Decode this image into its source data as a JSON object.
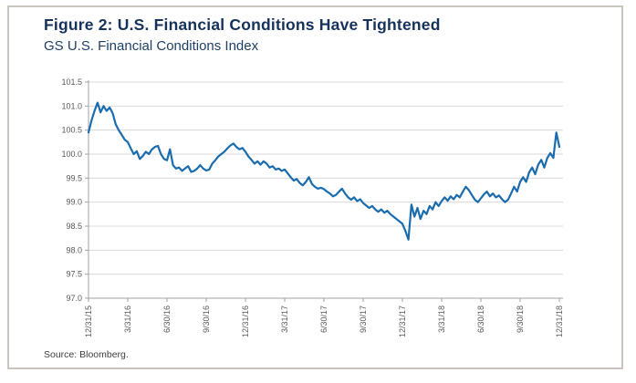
{
  "figure": {
    "title": "Figure 2: U.S. Financial Conditions Have Tightened",
    "subtitle": "GS U.S. Financial Conditions Index",
    "source": "Source: Bloomberg."
  },
  "colors": {
    "title": "#16325b",
    "subtitle": "#1e4068",
    "line": "#1a6cae",
    "grid": "#d8d8d8",
    "axis": "#a0a0a0",
    "tick_label": "#595959",
    "source_text": "#3f3f3f",
    "frame_border": "#c9c5bd"
  },
  "chart_data": {
    "type": "line",
    "title": "GS U.S. Financial Conditions Index",
    "xlabel": "",
    "ylabel": "",
    "ylim": [
      97.0,
      101.5
    ],
    "y_ticks": [
      97.0,
      97.5,
      98.0,
      98.5,
      99.0,
      99.5,
      100.0,
      100.5,
      101.0,
      101.5
    ],
    "x_tick_labels": [
      "12/31/15",
      "3/31/16",
      "6/30/16",
      "9/30/16",
      "12/31/16",
      "3/31/17",
      "6/30/17",
      "9/30/17",
      "12/31/17",
      "3/31/18",
      "6/30/18",
      "9/30/18",
      "12/31/18"
    ],
    "grid": "horizontal",
    "legend": "none",
    "sampling": "weekly",
    "series": [
      {
        "name": "GS U.S. Financial Conditions Index",
        "values": [
          100.45,
          100.7,
          100.9,
          101.07,
          100.87,
          101.0,
          100.9,
          100.97,
          100.85,
          100.62,
          100.5,
          100.4,
          100.3,
          100.25,
          100.12,
          100.0,
          100.06,
          99.9,
          99.96,
          100.05,
          100.0,
          100.1,
          100.15,
          100.17,
          100.0,
          99.9,
          99.87,
          100.1,
          99.77,
          99.7,
          99.72,
          99.65,
          99.7,
          99.75,
          99.63,
          99.65,
          99.7,
          99.77,
          99.7,
          99.66,
          99.68,
          99.8,
          99.87,
          99.95,
          100.0,
          100.05,
          100.12,
          100.18,
          100.22,
          100.15,
          100.1,
          100.13,
          100.05,
          99.95,
          99.88,
          99.8,
          99.85,
          99.78,
          99.85,
          99.8,
          99.72,
          99.75,
          99.68,
          99.7,
          99.65,
          99.68,
          99.6,
          99.52,
          99.45,
          99.48,
          99.4,
          99.35,
          99.42,
          99.52,
          99.38,
          99.32,
          99.28,
          99.3,
          99.27,
          99.22,
          99.18,
          99.12,
          99.15,
          99.22,
          99.28,
          99.18,
          99.1,
          99.05,
          99.1,
          99.02,
          99.06,
          98.98,
          98.93,
          98.88,
          98.92,
          98.85,
          98.8,
          98.85,
          98.78,
          98.82,
          98.75,
          98.7,
          98.65,
          98.6,
          98.55,
          98.4,
          98.22,
          98.95,
          98.7,
          98.88,
          98.65,
          98.82,
          98.75,
          98.92,
          98.85,
          99.0,
          98.92,
          99.02,
          99.1,
          99.03,
          99.12,
          99.06,
          99.15,
          99.1,
          99.22,
          99.32,
          99.25,
          99.15,
          99.05,
          99.0,
          99.08,
          99.16,
          99.22,
          99.12,
          99.18,
          99.1,
          99.14,
          99.06,
          99.0,
          99.05,
          99.18,
          99.32,
          99.22,
          99.42,
          99.52,
          99.42,
          99.62,
          99.72,
          99.58,
          99.78,
          99.88,
          99.72,
          99.92,
          100.02,
          99.92,
          100.45,
          100.15
        ]
      }
    ]
  }
}
